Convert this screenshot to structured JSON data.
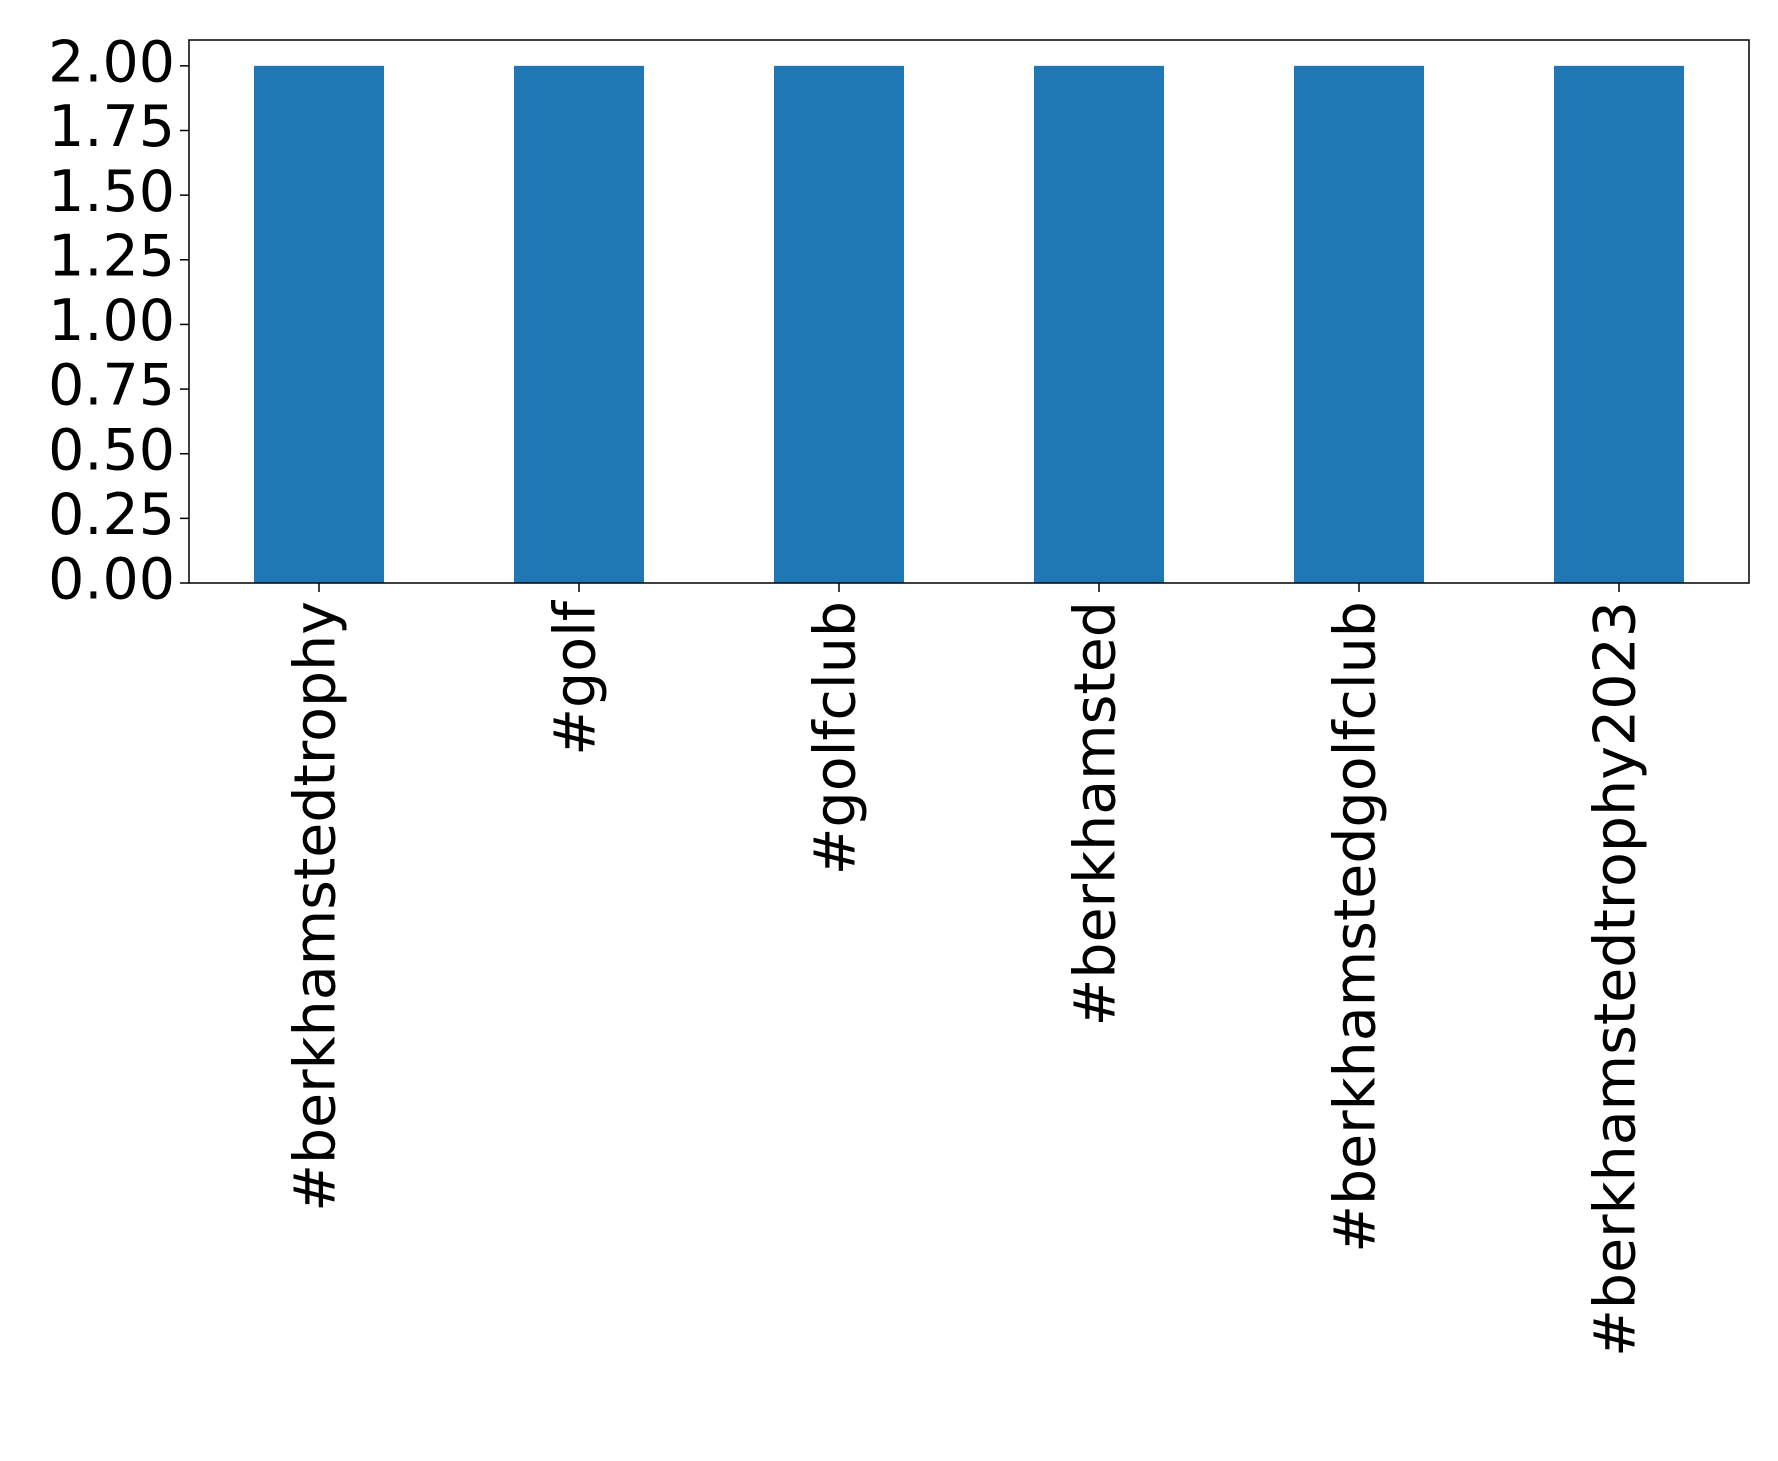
{
  "chart_data": {
    "type": "bar",
    "categories": [
      "#berkhamstedtrophy",
      "#golf",
      "#golfclub",
      "#berkhamsted",
      "#berkhamstedgolfclub",
      "#berkhamstedtrophy2023"
    ],
    "values": [
      2,
      2,
      2,
      2,
      2,
      2
    ],
    "color": "#1f77b4",
    "ylim": [
      0,
      2.1
    ],
    "yticks": [
      {
        "value": 0,
        "label": "0.00"
      },
      {
        "value": 0.25,
        "label": "0.25"
      },
      {
        "value": 0.5,
        "label": "0.50"
      },
      {
        "value": 0.75,
        "label": "0.75"
      },
      {
        "value": 1,
        "label": "1.00"
      },
      {
        "value": 1.25,
        "label": "1.25"
      },
      {
        "value": 1.5,
        "label": "1.50"
      },
      {
        "value": 1.75,
        "label": "1.75"
      },
      {
        "value": 2,
        "label": "2.00"
      }
    ],
    "grid": false
  }
}
